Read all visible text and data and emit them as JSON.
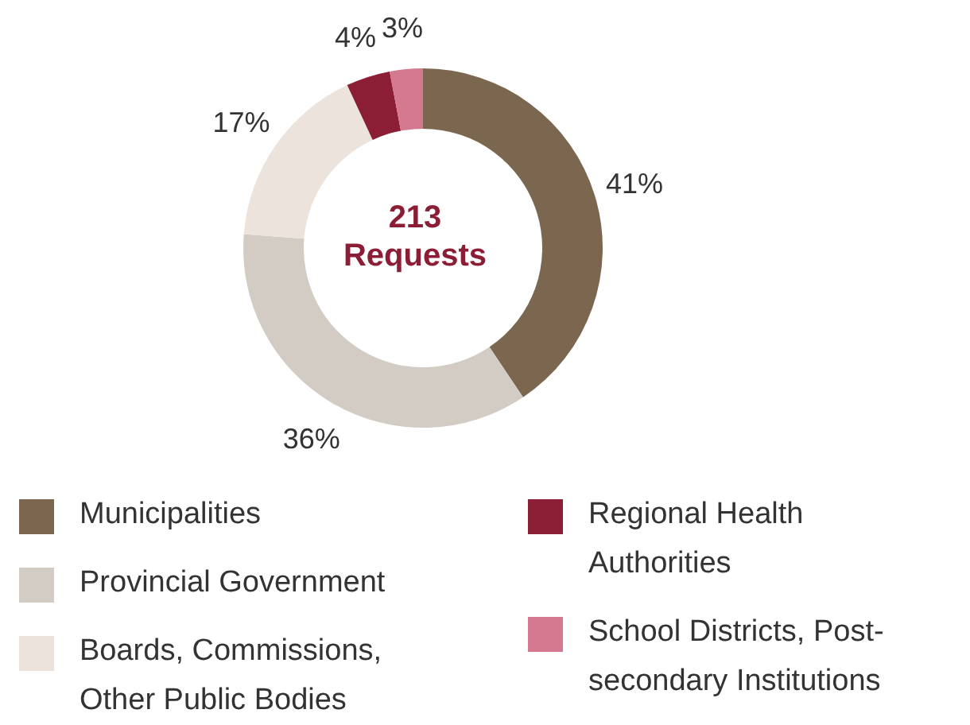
{
  "chart_data": {
    "type": "donut",
    "categories": [
      "Municipalities",
      "Provincial Government",
      "Boards, Commissions, Other Public Bodies",
      "Regional Health Authorities",
      "School Districts, Post-secondary Institutions"
    ],
    "values": [
      41,
      36,
      17,
      4,
      3
    ],
    "colors": [
      "#7b6650",
      "#d3ccc4",
      "#ebe3dc",
      "#8b1e34",
      "#d4798f"
    ],
    "annotations": [
      "213",
      "Requests"
    ],
    "value_labels": [
      "41%",
      "36%",
      "17%",
      "4%",
      "3%"
    ],
    "legend": "bottom"
  }
}
